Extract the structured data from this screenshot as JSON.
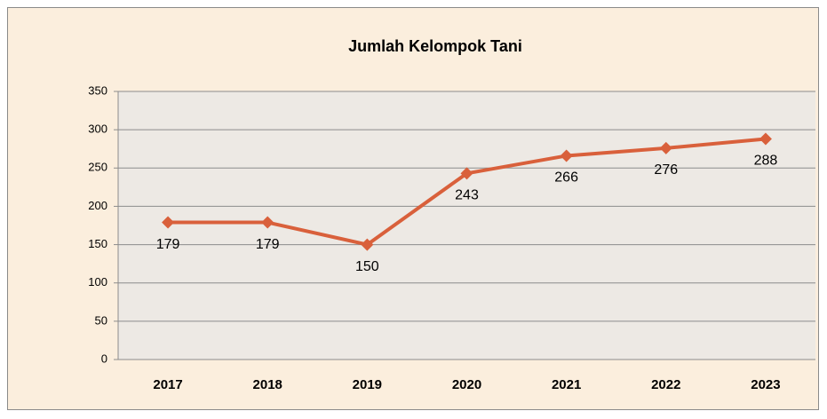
{
  "chart_data": {
    "type": "line",
    "title": "Jumlah Kelompok Tani",
    "categories": [
      "2017",
      "2018",
      "2019",
      "2020",
      "2021",
      "2022",
      "2023"
    ],
    "series": [
      {
        "name": "Jumlah Kelompok Tani",
        "color": "#d9603b",
        "values": [
          179,
          179,
          150,
          243,
          266,
          276,
          288
        ]
      }
    ],
    "ylim": [
      0,
      350
    ],
    "yticks": [
      0,
      50,
      100,
      150,
      200,
      250,
      300,
      350
    ],
    "grid": true
  }
}
